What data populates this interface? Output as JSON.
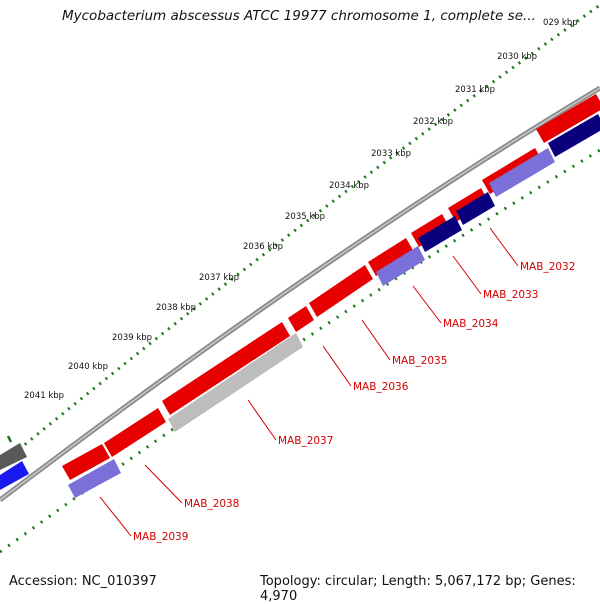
{
  "title": "Mycobacterium abscessus ATCC 19977 chromosome 1, complete se...",
  "accession": "Accession: NC_010397",
  "summary": "Topology: circular; Length: 5,067,172 bp; Genes: 4,970",
  "scale_labels": [
    "029 kbp",
    "2030 kbp",
    "2031 kbp",
    "2032 kbp",
    "2033 kbp",
    "2034 kbp",
    "2035 kbp",
    "2036 kbp",
    "2037 kbp",
    "2038 kbp",
    "2039 kbp",
    "2040 kbp",
    "2041 kbp"
  ],
  "gene_labels": [
    "MAB_2032",
    "MAB_2033",
    "MAB_2034",
    "MAB_2035",
    "MAB_2036",
    "MAB_2037",
    "MAB_2038",
    "MAB_2039"
  ],
  "colors": {
    "forward_gene": "#e60000",
    "reverse_gene_light": "#7a70d8",
    "reverse_gene_dark": "#0a007e",
    "gray_gene": "#bdbdbd",
    "backbone": "#8a8a8a",
    "ruler": "#1a7a1a",
    "label": "#d40000"
  }
}
